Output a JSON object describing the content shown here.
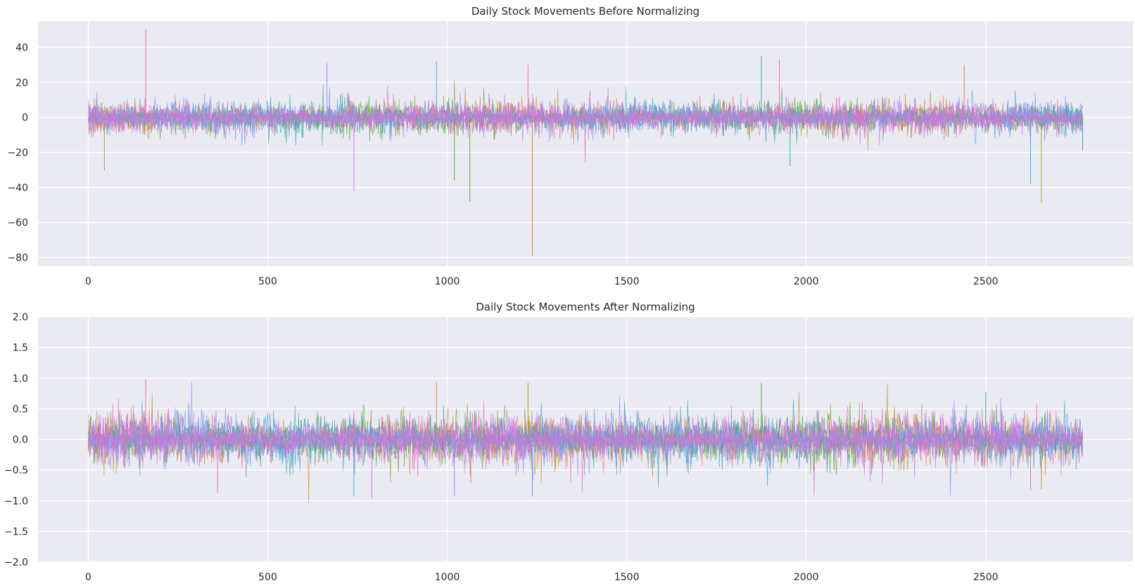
{
  "chart_data": [
    {
      "type": "line",
      "title": "Daily Stock Movements Before Normalizing",
      "xlabel": "",
      "ylabel": "",
      "xlim": [
        -140,
        2910
      ],
      "ylim": [
        -85,
        55
      ],
      "xticks": [
        0,
        500,
        1000,
        1500,
        2000,
        2500
      ],
      "yticks": [
        -80,
        -60,
        -40,
        -20,
        0,
        20,
        40
      ],
      "n_points": 2770,
      "n_series": 10,
      "grid": true,
      "legend": "none",
      "background": "#eaeaf2",
      "series_colors": [
        "#f77189",
        "#d58c32",
        "#a4a031",
        "#50b131",
        "#36ada4",
        "#38a9c5",
        "#6e9bf4",
        "#a48cf4",
        "#cc7af4",
        "#f565cc"
      ],
      "typical_band": [
        -8,
        8
      ],
      "extremes": [
        {
          "x": 160,
          "y": 50
        },
        {
          "x": 1237,
          "y": -79
        },
        {
          "x": 2655,
          "y": -49
        },
        {
          "x": 1063,
          "y": -48
        },
        {
          "x": 1875,
          "y": 35
        },
        {
          "x": 2625,
          "y": -38
        },
        {
          "x": 970,
          "y": 32
        },
        {
          "x": 665,
          "y": 31
        },
        {
          "x": 740,
          "y": -42
        },
        {
          "x": 1225,
          "y": 30
        },
        {
          "x": 1925,
          "y": 33
        },
        {
          "x": 2440,
          "y": 30
        },
        {
          "x": 45,
          "y": -30
        },
        {
          "x": 1020,
          "y": -36
        },
        {
          "x": 1955,
          "y": -28
        },
        {
          "x": 2770,
          "y": -19
        }
      ]
    },
    {
      "type": "line",
      "title": "Daily Stock Movements After Normalizing",
      "xlabel": "",
      "ylabel": "",
      "xlim": [
        -140,
        2910
      ],
      "ylim": [
        -2.0,
        2.0
      ],
      "xticks": [
        0,
        500,
        1000,
        1500,
        2000,
        2500
      ],
      "yticks": [
        -2.0,
        -1.5,
        -1.0,
        -0.5,
        0.0,
        0.5,
        1.0,
        1.5,
        2.0
      ],
      "n_points": 2770,
      "n_series": 10,
      "grid": true,
      "legend": "none",
      "background": "#eaeaf2",
      "series_colors": [
        "#f77189",
        "#d58c32",
        "#a4a031",
        "#50b131",
        "#36ada4",
        "#38a9c5",
        "#6e9bf4",
        "#a48cf4",
        "#cc7af4",
        "#f565cc"
      ],
      "typical_band": [
        -0.35,
        0.35
      ],
      "extremes": [
        {
          "x": 160,
          "y": 0.98
        },
        {
          "x": 970,
          "y": 0.93
        },
        {
          "x": 1225,
          "y": 0.92
        },
        {
          "x": 1875,
          "y": 0.92
        },
        {
          "x": 2500,
          "y": 0.77
        },
        {
          "x": 740,
          "y": -0.93
        },
        {
          "x": 1237,
          "y": -0.93
        },
        {
          "x": 1020,
          "y": -0.92
        },
        {
          "x": 790,
          "y": -0.95
        },
        {
          "x": 360,
          "y": -0.87
        },
        {
          "x": 2625,
          "y": -0.82
        },
        {
          "x": 2655,
          "y": -0.81
        }
      ]
    }
  ]
}
